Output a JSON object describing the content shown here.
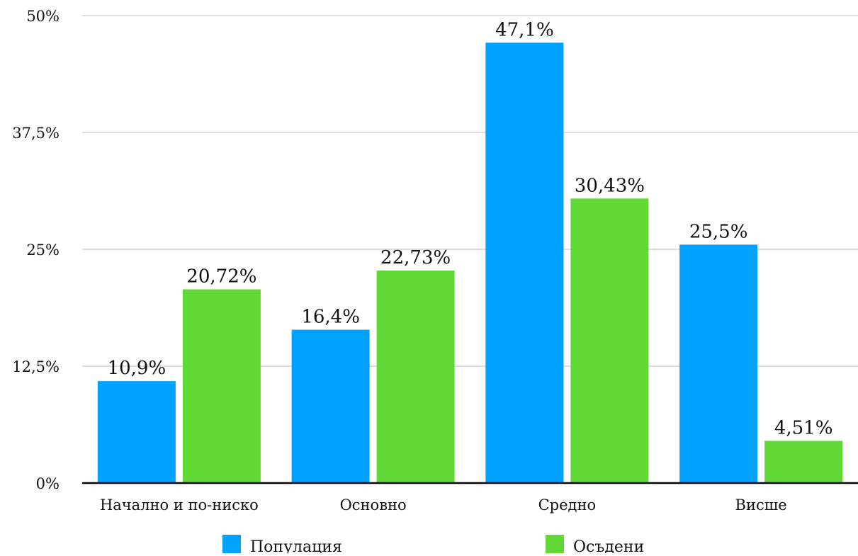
{
  "chart_data": {
    "type": "bar",
    "categories": [
      "Начално и по-ниско",
      "Основно",
      "Средно",
      "Висше"
    ],
    "series": [
      {
        "name": "Популация",
        "color": "#00A2FF",
        "values": [
          10.9,
          16.4,
          47.1,
          25.5
        ],
        "labels": [
          "10,9%",
          "16,4%",
          "47,1%",
          "25,5%"
        ]
      },
      {
        "name": "Осъдени",
        "color": "#61D836",
        "values": [
          20.72,
          22.73,
          30.43,
          4.51
        ],
        "labels": [
          "20,72%",
          "22,73%",
          "30,43%",
          "4,51%"
        ]
      }
    ],
    "yticks": [
      0,
      12.5,
      25,
      37.5,
      50
    ],
    "ytick_labels": [
      "0%",
      "12,5%",
      "25%",
      "37,5%",
      "50%"
    ],
    "ylim": [
      0,
      50
    ],
    "grid": true,
    "legend_position": "bottom"
  }
}
